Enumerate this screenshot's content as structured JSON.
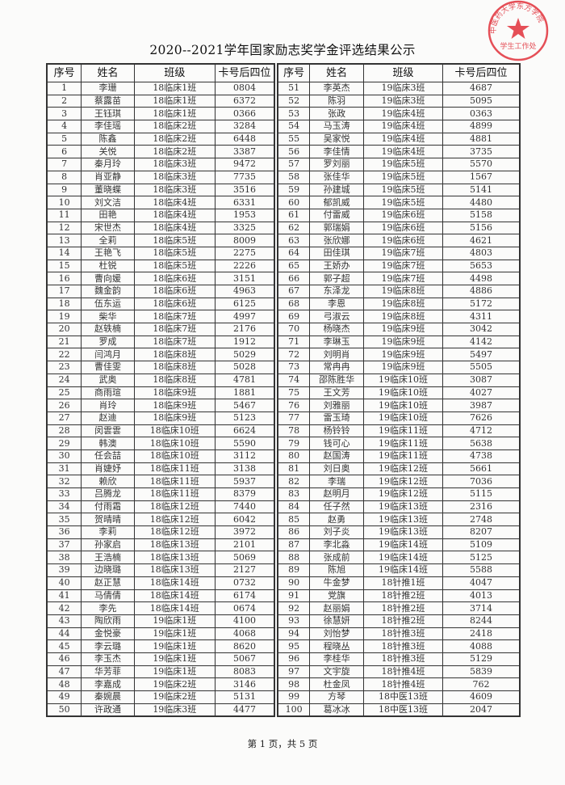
{
  "title": "2020--2021学年国家励志奖学金评选结果公示",
  "headers": [
    "序号",
    "姓名",
    "班级",
    "卡号后四位"
  ],
  "rows": [
    [
      "1",
      "李珊",
      "18临床1班",
      "0804"
    ],
    [
      "2",
      "蔡露苗",
      "18临床1班",
      "6372"
    ],
    [
      "3",
      "王钰琪",
      "18临床1班",
      "0366"
    ],
    [
      "4",
      "李佳瑶",
      "18临床2班",
      "3284"
    ],
    [
      "5",
      "陈鑫",
      "18临床2班",
      "6448"
    ],
    [
      "6",
      "关悦",
      "18临床2班",
      "3387"
    ],
    [
      "7",
      "秦月玲",
      "18临床3班",
      "9472"
    ],
    [
      "8",
      "肖亚静",
      "18临床3班",
      "7735"
    ],
    [
      "9",
      "董晓蝶",
      "18临床3班",
      "3516"
    ],
    [
      "10",
      "刘文洁",
      "18临床4班",
      "6331"
    ],
    [
      "11",
      "田艳",
      "18临床4班",
      "1953"
    ],
    [
      "12",
      "宋世杰",
      "18临床4班",
      "3325"
    ],
    [
      "13",
      "全莉",
      "18临床5班",
      "8009"
    ],
    [
      "14",
      "王艳飞",
      "18临床5班",
      "2275"
    ],
    [
      "15",
      "杜锐",
      "18临床5班",
      "2226"
    ],
    [
      "16",
      "曹向媛",
      "18临床6班",
      "3151"
    ],
    [
      "17",
      "魏金韵",
      "18临床6班",
      "4963"
    ],
    [
      "18",
      "伍东运",
      "18临床6班",
      "6125"
    ],
    [
      "19",
      "柴华",
      "18临床7班",
      "4997"
    ],
    [
      "20",
      "赵轶楠",
      "18临床7班",
      "2176"
    ],
    [
      "21",
      "罗成",
      "18临床7班",
      "1912"
    ],
    [
      "22",
      "闫鸿月",
      "18临床8班",
      "5029"
    ],
    [
      "23",
      "曹佳雯",
      "18临床8班",
      "5028"
    ],
    [
      "24",
      "武奥",
      "18临床8班",
      "4781"
    ],
    [
      "25",
      "商雨瑄",
      "18临床9班",
      "1881"
    ],
    [
      "26",
      "肖玲",
      "18临床9班",
      "5467"
    ],
    [
      "27",
      "赵迪",
      "18临床9班",
      "5123"
    ],
    [
      "28",
      "闵雲雲",
      "18临床10班",
      "6624"
    ],
    [
      "29",
      "韩澳",
      "18临床10班",
      "5590"
    ],
    [
      "30",
      "任会喆",
      "18临床10班",
      "3112"
    ],
    [
      "31",
      "肖婕妤",
      "18临床11班",
      "3138"
    ],
    [
      "32",
      "赖欣",
      "18临床11班",
      "5937"
    ],
    [
      "33",
      "吕腾龙",
      "18临床11班",
      "8379"
    ],
    [
      "34",
      "付雨霜",
      "18临床12班",
      "7440"
    ],
    [
      "35",
      "贺晴晴",
      "18临床12班",
      "6042"
    ],
    [
      "36",
      "李莉",
      "18临床12班",
      "3972"
    ],
    [
      "37",
      "孙家启",
      "18临床13班",
      "2101"
    ],
    [
      "38",
      "王浩楠",
      "18临床13班",
      "5069"
    ],
    [
      "39",
      "边晓璐",
      "18临床13班",
      "2127"
    ],
    [
      "40",
      "赵正慧",
      "18临床14班",
      "0732"
    ],
    [
      "41",
      "马倩倩",
      "18临床14班",
      "6174"
    ],
    [
      "42",
      "李先",
      "18临床14班",
      "0674"
    ],
    [
      "43",
      "陶欣雨",
      "19临床1班",
      "4100"
    ],
    [
      "44",
      "金悦豪",
      "19临床1班",
      "4068"
    ],
    [
      "45",
      "李云璐",
      "19临床1班",
      "8620"
    ],
    [
      "46",
      "李玉杰",
      "19临床1班",
      "5067"
    ],
    [
      "47",
      "华芳菲",
      "19临床1班",
      "8083"
    ],
    [
      "48",
      "李嘉成",
      "19临床2班",
      "3146"
    ],
    [
      "49",
      "秦婉晨",
      "19临床2班",
      "5131"
    ],
    [
      "50",
      "许政通",
      "19临床3班",
      "4477"
    ],
    [
      "51",
      "李英杰",
      "19临床3班",
      "4687"
    ],
    [
      "52",
      "陈羽",
      "19临床3班",
      "5095"
    ],
    [
      "53",
      "张政",
      "19临床4班",
      "0363"
    ],
    [
      "54",
      "马玉涛",
      "19临床4班",
      "4899"
    ],
    [
      "55",
      "吴家悦",
      "19临床4班",
      "4881"
    ],
    [
      "56",
      "李佳情",
      "19临床4班",
      "3735"
    ],
    [
      "57",
      "罗刘丽",
      "19临床5班",
      "5570"
    ],
    [
      "58",
      "张佳华",
      "19临床5班",
      "1567"
    ],
    [
      "59",
      "孙建城",
      "19临床5班",
      "5141"
    ],
    [
      "60",
      "郁凯威",
      "19临床5班",
      "4480"
    ],
    [
      "61",
      "付雷威",
      "19临床6班",
      "5158"
    ],
    [
      "62",
      "郭瑞娟",
      "19临床6班",
      "5156"
    ],
    [
      "63",
      "张欣娜",
      "19临床6班",
      "4621"
    ],
    [
      "64",
      "田佳琪",
      "19临床7班",
      "4803"
    ],
    [
      "65",
      "王娇办",
      "19临床7班",
      "5653"
    ],
    [
      "66",
      "郭子超",
      "19临床7班",
      "4498"
    ],
    [
      "67",
      "东泽龙",
      "19临床8班",
      "4886"
    ],
    [
      "68",
      "李恩",
      "19临床8班",
      "5172"
    ],
    [
      "69",
      "弓淑云",
      "19临床8班",
      "4311"
    ],
    [
      "70",
      "杨晓杰",
      "19临床9班",
      "3042"
    ],
    [
      "71",
      "李琳玉",
      "19临床9班",
      "4142"
    ],
    [
      "72",
      "刘明肖",
      "19临床9班",
      "5497"
    ],
    [
      "73",
      "常冉冉",
      "19临床9班",
      "5505"
    ],
    [
      "74",
      "邵陈胜华",
      "19临床10班",
      "3087"
    ],
    [
      "75",
      "王文芳",
      "19临床10班",
      "4027"
    ],
    [
      "76",
      "刘雅丽",
      "19临床10班",
      "3987"
    ],
    [
      "77",
      "雷玉琦",
      "19临床10班",
      "7626"
    ],
    [
      "78",
      "杨铃铃",
      "19临床11班",
      "4712"
    ],
    [
      "79",
      "钱可心",
      "19临床11班",
      "5638"
    ],
    [
      "80",
      "赵国涛",
      "19临床11班",
      "4738"
    ],
    [
      "81",
      "刘日奥",
      "19临床12班",
      "5661"
    ],
    [
      "82",
      "李瑞",
      "19临床12班",
      "7036"
    ],
    [
      "83",
      "赵明月",
      "19临床12班",
      "5115"
    ],
    [
      "84",
      "任子然",
      "19临床13班",
      "2316"
    ],
    [
      "85",
      "赵勇",
      "19临床13班",
      "2748"
    ],
    [
      "86",
      "刘子炎",
      "19临床13班",
      "8207"
    ],
    [
      "87",
      "李北淼",
      "19临床14班",
      "5109"
    ],
    [
      "88",
      "张成前",
      "19临床14班",
      "5125"
    ],
    [
      "89",
      "陈旭",
      "19临床14班",
      "5588"
    ],
    [
      "90",
      "牛金梦",
      "18针推1班",
      "4047"
    ],
    [
      "91",
      "党旗",
      "18针推2班",
      "4013"
    ],
    [
      "92",
      "赵丽娟",
      "18针推2班",
      "3714"
    ],
    [
      "93",
      "徐慧妍",
      "18针推2班",
      "8244"
    ],
    [
      "94",
      "刘怡梦",
      "18针推3班",
      "2418"
    ],
    [
      "95",
      "程晓丛",
      "18针推3班",
      "4088"
    ],
    [
      "96",
      "李桂华",
      "18针推3班",
      "5129"
    ],
    [
      "97",
      "文宇旋",
      "18针推4班",
      "5839"
    ],
    [
      "98",
      "杜金凤",
      "18针推4班",
      "762"
    ],
    [
      "99",
      "方琴",
      "18中医13班",
      "4609"
    ],
    [
      "100",
      "葛冰冰",
      "18中医13班",
      "2047"
    ]
  ],
  "stamp": {
    "outer_text": "中医药大学东方学院",
    "inner_text": "学生工作处",
    "color": "#e0303a"
  },
  "footer": "第 1 页，共 5 页"
}
